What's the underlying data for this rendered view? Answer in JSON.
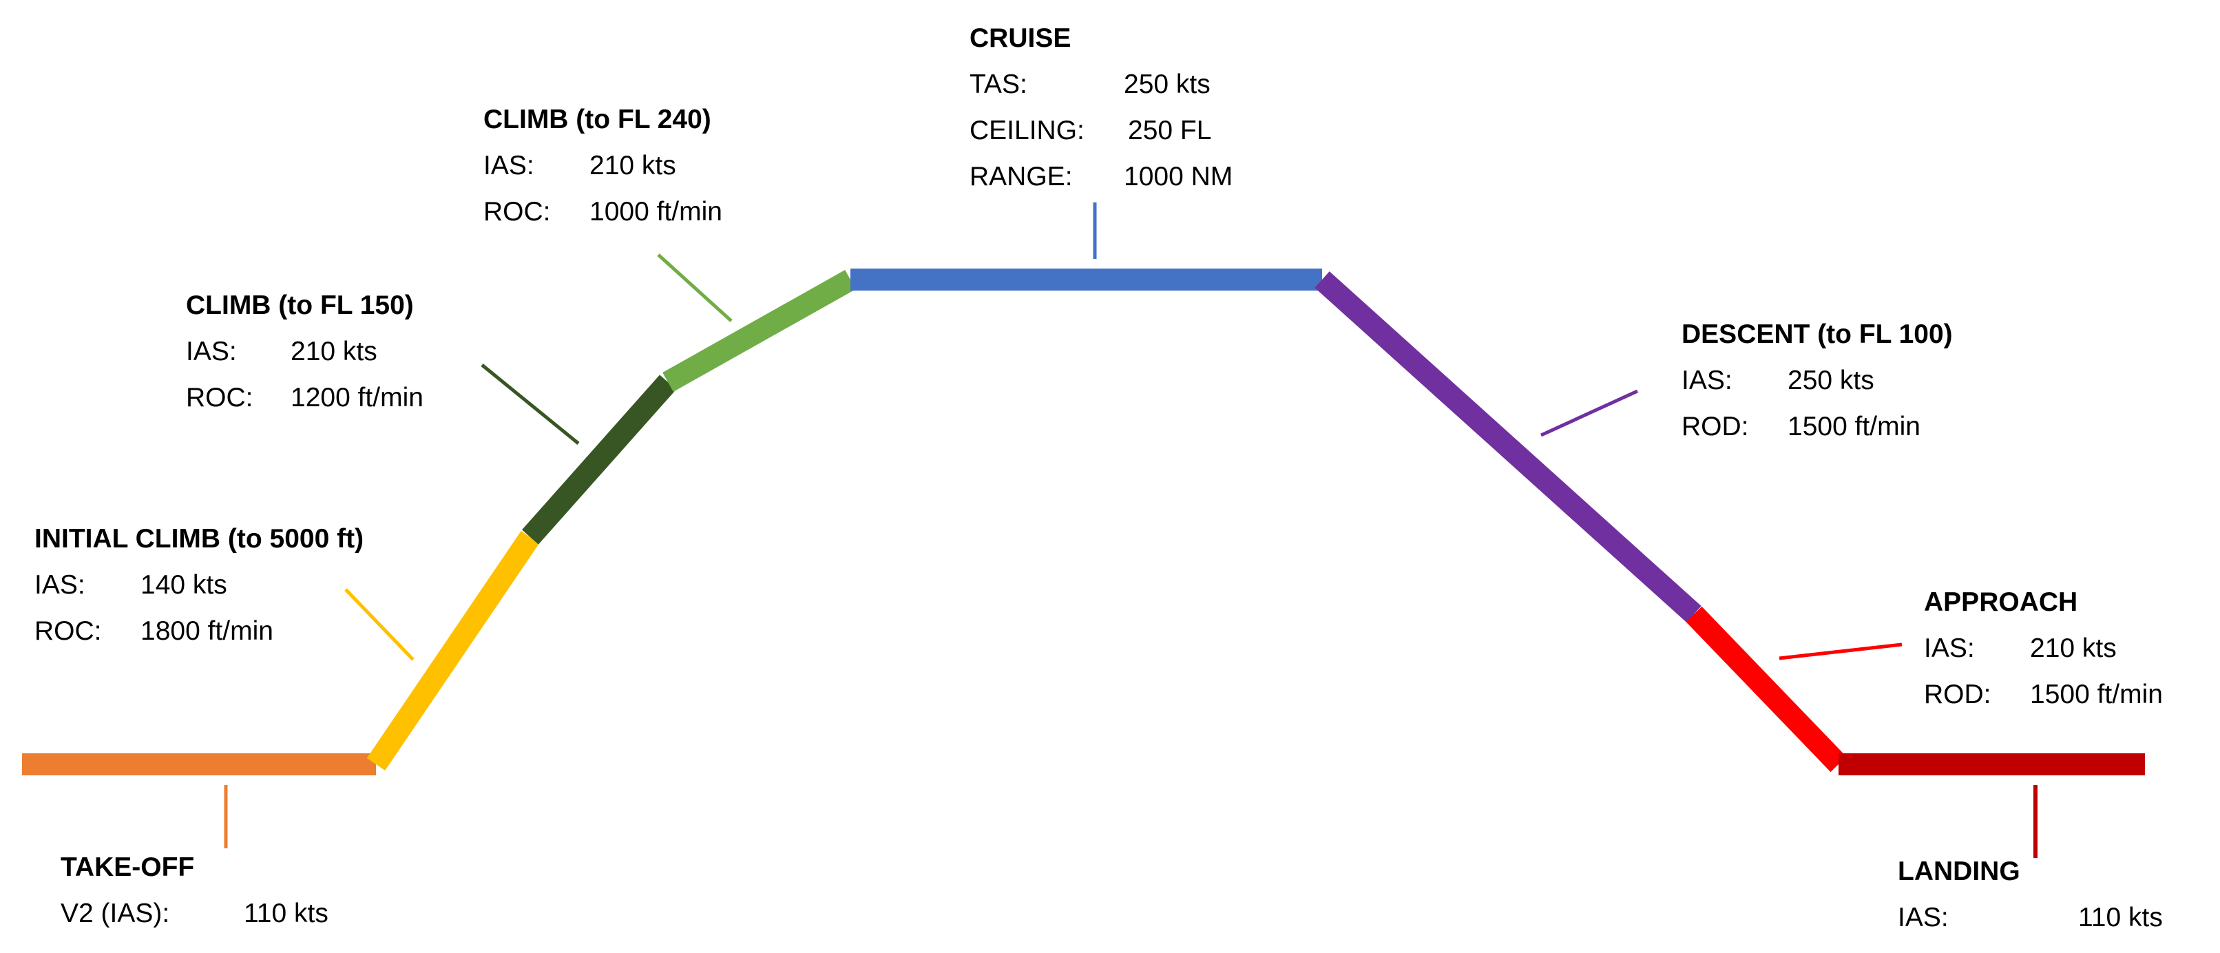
{
  "colors": {
    "takeoff": "#ED7D31",
    "initial_climb": "#FFC000",
    "climb_fl150": "#375623",
    "climb_fl240": "#70AD47",
    "cruise": "#4472C4",
    "descent": "#7030A0",
    "approach": "#FF0000",
    "landing": "#C00000"
  },
  "phases": {
    "takeoff": {
      "title": "TAKE-OFF",
      "rows": [
        {
          "label": "V2 (IAS):",
          "value": "110 kts"
        }
      ]
    },
    "initial_climb": {
      "title": "INITIAL CLIMB (to 5000 ft)",
      "rows": [
        {
          "label": "IAS:",
          "value": "140 kts"
        },
        {
          "label": "ROC:",
          "value": "1800 ft/min"
        }
      ]
    },
    "climb_fl150": {
      "title": "CLIMB (to FL 150)",
      "rows": [
        {
          "label": "IAS:",
          "value": "210 kts"
        },
        {
          "label": "ROC:",
          "value": "1200 ft/min"
        }
      ]
    },
    "climb_fl240": {
      "title": "CLIMB (to FL 240)",
      "rows": [
        {
          "label": "IAS:",
          "value": "210 kts"
        },
        {
          "label": "ROC:",
          "value": "1000 ft/min"
        }
      ]
    },
    "cruise": {
      "title": "CRUISE",
      "rows": [
        {
          "label": "TAS:",
          "value": "250 kts"
        },
        {
          "label": "CEILING:",
          "value": "250 FL"
        },
        {
          "label": "RANGE:",
          "value": "1000 NM"
        }
      ]
    },
    "descent": {
      "title": "DESCENT (to FL 100)",
      "rows": [
        {
          "label": "IAS:",
          "value": "250 kts"
        },
        {
          "label": "ROD:",
          "value": "1500 ft/min"
        }
      ]
    },
    "approach": {
      "title": "APPROACH",
      "rows": [
        {
          "label": "IAS:",
          "value": "210 kts"
        },
        {
          "label": "ROD:",
          "value": "1500 ft/min"
        }
      ]
    },
    "landing": {
      "title": "LANDING",
      "rows": [
        {
          "label": "IAS:",
          "value": "110 kts"
        }
      ]
    }
  }
}
